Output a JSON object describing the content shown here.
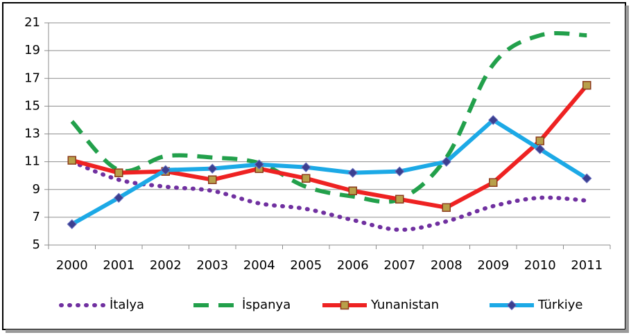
{
  "chart_data": {
    "type": "line",
    "categories": [
      "2000",
      "2001",
      "2002",
      "2003",
      "2004",
      "2005",
      "2006",
      "2007",
      "2008",
      "2009",
      "2010",
      "2011"
    ],
    "ylim": [
      5,
      21
    ],
    "yticks": [
      5,
      7,
      9,
      11,
      13,
      15,
      17,
      19,
      21
    ],
    "grid": true,
    "legend": "bottom",
    "series": [
      {
        "name": "İtalya",
        "color": "#7030a0",
        "dash": "dotted",
        "smooth": true,
        "marker": "none",
        "values": [
          11.0,
          9.7,
          9.2,
          8.9,
          8.0,
          7.6,
          6.8,
          6.1,
          6.7,
          7.8,
          8.4,
          8.2
        ]
      },
      {
        "name": "İspanya",
        "color": "#22a04b",
        "dash": "dashed",
        "smooth": true,
        "marker": "none",
        "values": [
          13.9,
          10.4,
          11.4,
          11.3,
          10.9,
          9.2,
          8.5,
          8.3,
          11.3,
          18.0,
          20.1,
          20.1
        ]
      },
      {
        "name": "Yunanistan",
        "color": "#ee2222",
        "dash": "solid",
        "smooth": false,
        "marker": "square",
        "values": [
          11.1,
          10.2,
          10.3,
          9.7,
          10.5,
          9.8,
          8.9,
          8.3,
          7.7,
          9.5,
          12.5,
          16.5
        ]
      },
      {
        "name": "Türkiye",
        "color": "#1ca9e6",
        "dash": "solid",
        "smooth": false,
        "marker": "diamond",
        "values": [
          6.5,
          8.4,
          10.4,
          10.5,
          10.8,
          10.6,
          10.2,
          10.3,
          11.0,
          14.0,
          11.9,
          9.8
        ]
      }
    ]
  }
}
